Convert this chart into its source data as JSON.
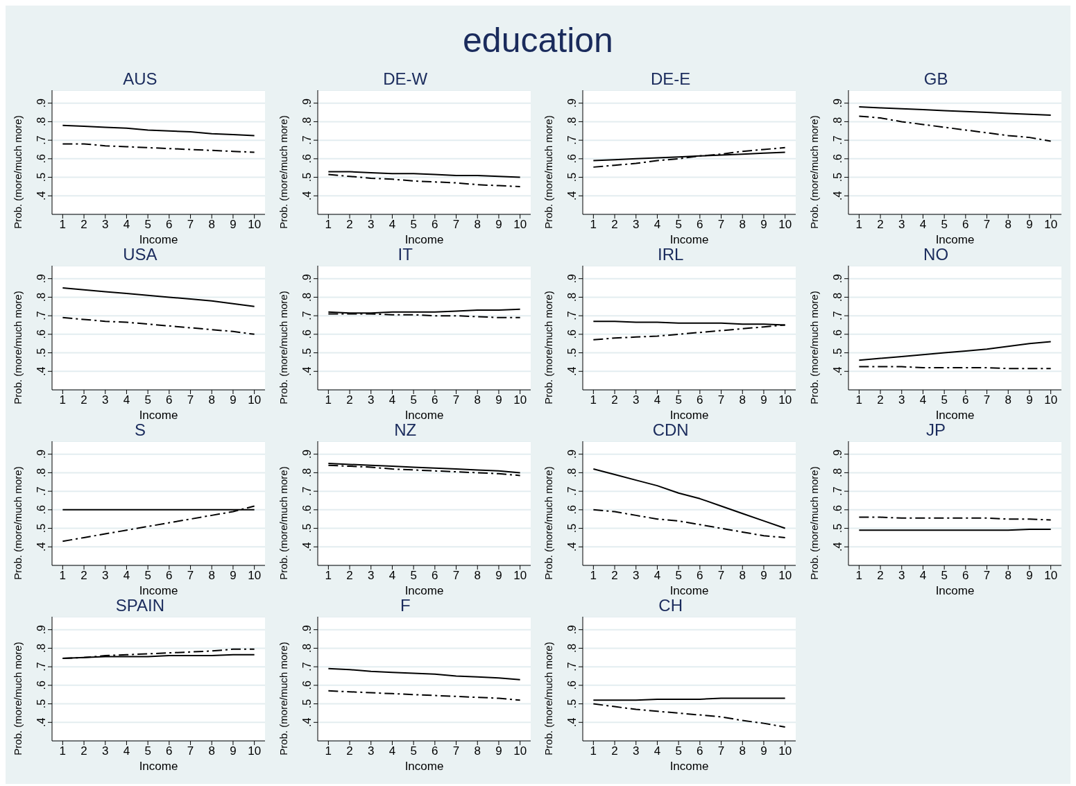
{
  "chart_data": [
    {
      "type": "other",
      "title": "education"
    },
    {
      "type": "line",
      "title": "AUS",
      "xlabel": "Income",
      "ylabel": "Prob. (more/much more)",
      "x": [
        1,
        2,
        3,
        4,
        5,
        6,
        7,
        8,
        9,
        10
      ],
      "xlim": [
        0.5,
        10.5
      ],
      "xticks": [
        1,
        2,
        3,
        4,
        5,
        6,
        7,
        8,
        9,
        10
      ],
      "ylim": [
        0.3,
        0.97
      ],
      "yticks": [
        {
          "value": 0.4,
          "label": ".4"
        },
        {
          "value": 0.5,
          "label": ".5"
        },
        {
          "value": 0.6,
          "label": ".6"
        },
        {
          "value": 0.7,
          "label": ".7"
        },
        {
          "value": 0.8,
          "label": ".8"
        },
        {
          "value": 0.9,
          "label": ".9"
        }
      ],
      "grid": "y",
      "series": [
        {
          "color": "#000000",
          "line_style": "solid",
          "values": [
            0.78,
            0.775,
            0.77,
            0.765,
            0.755,
            0.75,
            0.745,
            0.735,
            0.73,
            0.725
          ]
        },
        {
          "color": "#000000",
          "line_style": "dashed",
          "values": [
            0.68,
            0.68,
            0.67,
            0.665,
            0.66,
            0.655,
            0.65,
            0.645,
            0.64,
            0.635
          ]
        }
      ]
    },
    {
      "type": "line",
      "title": "DE-W",
      "xlabel": "Income",
      "ylabel": "Prob. (more/much more)",
      "x": [
        1,
        2,
        3,
        4,
        5,
        6,
        7,
        8,
        9,
        10
      ],
      "xlim": [
        0.5,
        10.5
      ],
      "xticks": [
        1,
        2,
        3,
        4,
        5,
        6,
        7,
        8,
        9,
        10
      ],
      "ylim": [
        0.3,
        0.97
      ],
      "yticks": [
        {
          "value": 0.4,
          "label": ".4"
        },
        {
          "value": 0.5,
          "label": ".5"
        },
        {
          "value": 0.6,
          "label": ".6"
        },
        {
          "value": 0.7,
          "label": ".7"
        },
        {
          "value": 0.8,
          "label": ".8"
        },
        {
          "value": 0.9,
          "label": ".9"
        }
      ],
      "grid": "y",
      "series": [
        {
          "color": "#000000",
          "line_style": "solid",
          "values": [
            0.53,
            0.53,
            0.525,
            0.52,
            0.52,
            0.515,
            0.51,
            0.51,
            0.505,
            0.5
          ]
        },
        {
          "color": "#000000",
          "line_style": "dashed",
          "values": [
            0.515,
            0.505,
            0.495,
            0.49,
            0.48,
            0.475,
            0.47,
            0.46,
            0.455,
            0.45
          ]
        }
      ]
    },
    {
      "type": "line",
      "title": "DE-E",
      "xlabel": "Income",
      "ylabel": "Prob. (more/much more)",
      "x": [
        1,
        2,
        3,
        4,
        5,
        6,
        7,
        8,
        9,
        10
      ],
      "xlim": [
        0.5,
        10.5
      ],
      "xticks": [
        1,
        2,
        3,
        4,
        5,
        6,
        7,
        8,
        9,
        10
      ],
      "ylim": [
        0.3,
        0.97
      ],
      "yticks": [
        {
          "value": 0.4,
          "label": ".4"
        },
        {
          "value": 0.5,
          "label": ".5"
        },
        {
          "value": 0.6,
          "label": ".6"
        },
        {
          "value": 0.7,
          "label": ".7"
        },
        {
          "value": 0.8,
          "label": ".8"
        },
        {
          "value": 0.9,
          "label": ".9"
        }
      ],
      "grid": "y",
      "series": [
        {
          "color": "#000000",
          "line_style": "solid",
          "values": [
            0.59,
            0.595,
            0.6,
            0.605,
            0.61,
            0.615,
            0.62,
            0.625,
            0.63,
            0.635
          ]
        },
        {
          "color": "#000000",
          "line_style": "dashed",
          "values": [
            0.555,
            0.565,
            0.575,
            0.59,
            0.6,
            0.615,
            0.625,
            0.64,
            0.65,
            0.66
          ]
        }
      ]
    },
    {
      "type": "line",
      "title": "GB",
      "xlabel": "Income",
      "ylabel": "Prob. (more/much more)",
      "x": [
        1,
        2,
        3,
        4,
        5,
        6,
        7,
        8,
        9,
        10
      ],
      "xlim": [
        0.5,
        10.5
      ],
      "xticks": [
        1,
        2,
        3,
        4,
        5,
        6,
        7,
        8,
        9,
        10
      ],
      "ylim": [
        0.3,
        0.97
      ],
      "yticks": [
        {
          "value": 0.4,
          "label": ".4"
        },
        {
          "value": 0.5,
          "label": ".5"
        },
        {
          "value": 0.6,
          "label": ".6"
        },
        {
          "value": 0.7,
          "label": ".7"
        },
        {
          "value": 0.8,
          "label": ".8"
        },
        {
          "value": 0.9,
          "label": ".9"
        }
      ],
      "grid": "y",
      "series": [
        {
          "color": "#000000",
          "line_style": "solid",
          "values": [
            0.88,
            0.875,
            0.87,
            0.865,
            0.86,
            0.855,
            0.85,
            0.845,
            0.84,
            0.835
          ]
        },
        {
          "color": "#000000",
          "line_style": "dashed",
          "values": [
            0.83,
            0.82,
            0.8,
            0.785,
            0.77,
            0.755,
            0.74,
            0.725,
            0.715,
            0.695
          ]
        }
      ]
    },
    {
      "type": "line",
      "title": "USA",
      "xlabel": "Income",
      "ylabel": "Prob. (more/much more)",
      "x": [
        1,
        2,
        3,
        4,
        5,
        6,
        7,
        8,
        9,
        10
      ],
      "xlim": [
        0.5,
        10.5
      ],
      "xticks": [
        1,
        2,
        3,
        4,
        5,
        6,
        7,
        8,
        9,
        10
      ],
      "ylim": [
        0.3,
        0.97
      ],
      "yticks": [
        {
          "value": 0.4,
          "label": ".4"
        },
        {
          "value": 0.5,
          "label": ".5"
        },
        {
          "value": 0.6,
          "label": ".6"
        },
        {
          "value": 0.7,
          "label": ".7"
        },
        {
          "value": 0.8,
          "label": ".8"
        },
        {
          "value": 0.9,
          "label": ".9"
        }
      ],
      "grid": "y",
      "series": [
        {
          "color": "#000000",
          "line_style": "solid",
          "values": [
            0.85,
            0.84,
            0.83,
            0.82,
            0.81,
            0.8,
            0.79,
            0.78,
            0.765,
            0.75
          ]
        },
        {
          "color": "#000000",
          "line_style": "dashed",
          "values": [
            0.69,
            0.68,
            0.67,
            0.665,
            0.655,
            0.645,
            0.635,
            0.625,
            0.615,
            0.6
          ]
        }
      ]
    },
    {
      "type": "line",
      "title": "IT",
      "xlabel": "Income",
      "ylabel": "Prob. (more/much more)",
      "x": [
        1,
        2,
        3,
        4,
        5,
        6,
        7,
        8,
        9,
        10
      ],
      "xlim": [
        0.5,
        10.5
      ],
      "xticks": [
        1,
        2,
        3,
        4,
        5,
        6,
        7,
        8,
        9,
        10
      ],
      "ylim": [
        0.3,
        0.97
      ],
      "yticks": [
        {
          "value": 0.4,
          "label": ".4"
        },
        {
          "value": 0.5,
          "label": ".5"
        },
        {
          "value": 0.6,
          "label": ".6"
        },
        {
          "value": 0.7,
          "label": ".7"
        },
        {
          "value": 0.8,
          "label": ".8"
        },
        {
          "value": 0.9,
          "label": ".9"
        }
      ],
      "grid": "y",
      "series": [
        {
          "color": "#000000",
          "line_style": "solid",
          "values": [
            0.72,
            0.715,
            0.715,
            0.72,
            0.72,
            0.72,
            0.725,
            0.73,
            0.73,
            0.735
          ]
        },
        {
          "color": "#000000",
          "line_style": "dashed",
          "values": [
            0.71,
            0.71,
            0.71,
            0.705,
            0.705,
            0.7,
            0.7,
            0.695,
            0.69,
            0.69
          ]
        }
      ]
    },
    {
      "type": "line",
      "title": "IRL",
      "xlabel": "Income",
      "ylabel": "Prob. (more/much more)",
      "x": [
        1,
        2,
        3,
        4,
        5,
        6,
        7,
        8,
        9,
        10
      ],
      "xlim": [
        0.5,
        10.5
      ],
      "xticks": [
        1,
        2,
        3,
        4,
        5,
        6,
        7,
        8,
        9,
        10
      ],
      "ylim": [
        0.3,
        0.97
      ],
      "yticks": [
        {
          "value": 0.4,
          "label": ".4"
        },
        {
          "value": 0.5,
          "label": ".5"
        },
        {
          "value": 0.6,
          "label": ".6"
        },
        {
          "value": 0.7,
          "label": ".7"
        },
        {
          "value": 0.8,
          "label": ".8"
        },
        {
          "value": 0.9,
          "label": ".9"
        }
      ],
      "grid": "y",
      "series": [
        {
          "color": "#000000",
          "line_style": "solid",
          "values": [
            0.67,
            0.67,
            0.665,
            0.665,
            0.66,
            0.66,
            0.66,
            0.655,
            0.655,
            0.65
          ]
        },
        {
          "color": "#000000",
          "line_style": "dashed",
          "values": [
            0.57,
            0.58,
            0.585,
            0.59,
            0.6,
            0.61,
            0.62,
            0.63,
            0.64,
            0.65
          ]
        }
      ]
    },
    {
      "type": "line",
      "title": "NO",
      "xlabel": "Income",
      "ylabel": "Prob. (more/much more)",
      "x": [
        1,
        2,
        3,
        4,
        5,
        6,
        7,
        8,
        9,
        10
      ],
      "xlim": [
        0.5,
        10.5
      ],
      "xticks": [
        1,
        2,
        3,
        4,
        5,
        6,
        7,
        8,
        9,
        10
      ],
      "ylim": [
        0.3,
        0.97
      ],
      "yticks": [
        {
          "value": 0.4,
          "label": ".4"
        },
        {
          "value": 0.5,
          "label": ".5"
        },
        {
          "value": 0.6,
          "label": ".6"
        },
        {
          "value": 0.7,
          "label": ".7"
        },
        {
          "value": 0.8,
          "label": ".8"
        },
        {
          "value": 0.9,
          "label": ".9"
        }
      ],
      "grid": "y",
      "series": [
        {
          "color": "#000000",
          "line_style": "solid",
          "values": [
            0.46,
            0.47,
            0.48,
            0.49,
            0.5,
            0.51,
            0.52,
            0.535,
            0.55,
            0.56
          ]
        },
        {
          "color": "#000000",
          "line_style": "dashed",
          "values": [
            0.425,
            0.425,
            0.425,
            0.42,
            0.42,
            0.42,
            0.42,
            0.415,
            0.415,
            0.415
          ]
        }
      ]
    },
    {
      "type": "line",
      "title": "S",
      "xlabel": "Income",
      "ylabel": "Prob. (more/much more)",
      "x": [
        1,
        2,
        3,
        4,
        5,
        6,
        7,
        8,
        9,
        10
      ],
      "xlim": [
        0.5,
        10.5
      ],
      "xticks": [
        1,
        2,
        3,
        4,
        5,
        6,
        7,
        8,
        9,
        10
      ],
      "ylim": [
        0.3,
        0.97
      ],
      "yticks": [
        {
          "value": 0.4,
          "label": ".4"
        },
        {
          "value": 0.5,
          "label": ".5"
        },
        {
          "value": 0.6,
          "label": ".6"
        },
        {
          "value": 0.7,
          "label": ".7"
        },
        {
          "value": 0.8,
          "label": ".8"
        },
        {
          "value": 0.9,
          "label": ".9"
        }
      ],
      "grid": "y",
      "series": [
        {
          "color": "#000000",
          "line_style": "solid",
          "values": [
            0.6,
            0.6,
            0.6,
            0.6,
            0.6,
            0.6,
            0.6,
            0.6,
            0.6,
            0.6
          ]
        },
        {
          "color": "#000000",
          "line_style": "dashed",
          "values": [
            0.43,
            0.45,
            0.47,
            0.49,
            0.51,
            0.53,
            0.55,
            0.57,
            0.59,
            0.62
          ]
        }
      ]
    },
    {
      "type": "line",
      "title": "NZ",
      "xlabel": "Income",
      "ylabel": "Prob. (more/much more)",
      "x": [
        1,
        2,
        3,
        4,
        5,
        6,
        7,
        8,
        9,
        10
      ],
      "xlim": [
        0.5,
        10.5
      ],
      "xticks": [
        1,
        2,
        3,
        4,
        5,
        6,
        7,
        8,
        9,
        10
      ],
      "ylim": [
        0.3,
        0.97
      ],
      "yticks": [
        {
          "value": 0.4,
          "label": ".4"
        },
        {
          "value": 0.5,
          "label": ".5"
        },
        {
          "value": 0.6,
          "label": ".6"
        },
        {
          "value": 0.7,
          "label": ".7"
        },
        {
          "value": 0.8,
          "label": ".8"
        },
        {
          "value": 0.9,
          "label": ".9"
        }
      ],
      "grid": "y",
      "series": [
        {
          "color": "#000000",
          "line_style": "solid",
          "values": [
            0.85,
            0.845,
            0.84,
            0.835,
            0.83,
            0.825,
            0.82,
            0.815,
            0.81,
            0.8
          ]
        },
        {
          "color": "#000000",
          "line_style": "dashed",
          "values": [
            0.84,
            0.835,
            0.83,
            0.82,
            0.815,
            0.81,
            0.805,
            0.8,
            0.795,
            0.785
          ]
        }
      ]
    },
    {
      "type": "line",
      "title": "CDN",
      "xlabel": "Income",
      "ylabel": "Prob. (more/much more)",
      "x": [
        1,
        2,
        3,
        4,
        5,
        6,
        7,
        8,
        9,
        10
      ],
      "xlim": [
        0.5,
        10.5
      ],
      "xticks": [
        1,
        2,
        3,
        4,
        5,
        6,
        7,
        8,
        9,
        10
      ],
      "ylim": [
        0.3,
        0.97
      ],
      "yticks": [
        {
          "value": 0.4,
          "label": ".4"
        },
        {
          "value": 0.5,
          "label": ".5"
        },
        {
          "value": 0.6,
          "label": ".6"
        },
        {
          "value": 0.7,
          "label": ".7"
        },
        {
          "value": 0.8,
          "label": ".8"
        },
        {
          "value": 0.9,
          "label": ".9"
        }
      ],
      "grid": "y",
      "series": [
        {
          "color": "#000000",
          "line_style": "solid",
          "values": [
            0.82,
            0.79,
            0.76,
            0.73,
            0.69,
            0.66,
            0.62,
            0.58,
            0.54,
            0.5
          ]
        },
        {
          "color": "#000000",
          "line_style": "dashed",
          "values": [
            0.6,
            0.59,
            0.57,
            0.55,
            0.54,
            0.52,
            0.5,
            0.48,
            0.46,
            0.45
          ]
        }
      ]
    },
    {
      "type": "line",
      "title": "JP",
      "xlabel": "Income",
      "ylabel": "Prob. (more/much more)",
      "x": [
        1,
        2,
        3,
        4,
        5,
        6,
        7,
        8,
        9,
        10
      ],
      "xlim": [
        0.5,
        10.5
      ],
      "xticks": [
        1,
        2,
        3,
        4,
        5,
        6,
        7,
        8,
        9,
        10
      ],
      "ylim": [
        0.3,
        0.97
      ],
      "yticks": [
        {
          "value": 0.4,
          "label": ".4"
        },
        {
          "value": 0.5,
          "label": ".5"
        },
        {
          "value": 0.6,
          "label": ".6"
        },
        {
          "value": 0.7,
          "label": ".7"
        },
        {
          "value": 0.8,
          "label": ".8"
        },
        {
          "value": 0.9,
          "label": ".9"
        }
      ],
      "grid": "y",
      "series": [
        {
          "color": "#000000",
          "line_style": "solid",
          "values": [
            0.49,
            0.49,
            0.49,
            0.49,
            0.49,
            0.49,
            0.49,
            0.49,
            0.495,
            0.495
          ]
        },
        {
          "color": "#000000",
          "line_style": "dashed",
          "values": [
            0.56,
            0.56,
            0.555,
            0.555,
            0.555,
            0.555,
            0.555,
            0.55,
            0.55,
            0.545
          ]
        }
      ]
    },
    {
      "type": "line",
      "title": "SPAIN",
      "xlabel": "Income",
      "ylabel": "Prob. (more/much more)",
      "x": [
        1,
        2,
        3,
        4,
        5,
        6,
        7,
        8,
        9,
        10
      ],
      "xlim": [
        0.5,
        10.5
      ],
      "xticks": [
        1,
        2,
        3,
        4,
        5,
        6,
        7,
        8,
        9,
        10
      ],
      "ylim": [
        0.3,
        0.97
      ],
      "yticks": [
        {
          "value": 0.4,
          "label": ".4"
        },
        {
          "value": 0.5,
          "label": ".5"
        },
        {
          "value": 0.6,
          "label": ".6"
        },
        {
          "value": 0.7,
          "label": ".7"
        },
        {
          "value": 0.8,
          "label": ".8"
        },
        {
          "value": 0.9,
          "label": ".9"
        }
      ],
      "grid": "y",
      "series": [
        {
          "color": "#000000",
          "line_style": "solid",
          "values": [
            0.745,
            0.75,
            0.755,
            0.755,
            0.755,
            0.76,
            0.76,
            0.76,
            0.765,
            0.765
          ]
        },
        {
          "color": "#000000",
          "line_style": "dashed",
          "values": [
            0.745,
            0.75,
            0.76,
            0.765,
            0.77,
            0.775,
            0.78,
            0.785,
            0.795,
            0.795
          ]
        }
      ]
    },
    {
      "type": "line",
      "title": "F",
      "xlabel": "Income",
      "ylabel": "Prob. (more/much more)",
      "x": [
        1,
        2,
        3,
        4,
        5,
        6,
        7,
        8,
        9,
        10
      ],
      "xlim": [
        0.5,
        10.5
      ],
      "xticks": [
        1,
        2,
        3,
        4,
        5,
        6,
        7,
        8,
        9,
        10
      ],
      "ylim": [
        0.3,
        0.97
      ],
      "yticks": [
        {
          "value": 0.4,
          "label": ".4"
        },
        {
          "value": 0.5,
          "label": ".5"
        },
        {
          "value": 0.6,
          "label": ".6"
        },
        {
          "value": 0.7,
          "label": ".7"
        },
        {
          "value": 0.8,
          "label": ".8"
        },
        {
          "value": 0.9,
          "label": ".9"
        }
      ],
      "grid": "y",
      "series": [
        {
          "color": "#000000",
          "line_style": "solid",
          "values": [
            0.69,
            0.685,
            0.675,
            0.67,
            0.665,
            0.66,
            0.65,
            0.645,
            0.64,
            0.63
          ]
        },
        {
          "color": "#000000",
          "line_style": "dashed",
          "values": [
            0.57,
            0.565,
            0.56,
            0.555,
            0.55,
            0.545,
            0.54,
            0.535,
            0.53,
            0.52
          ]
        }
      ]
    },
    {
      "type": "line",
      "title": "CH",
      "xlabel": "Income",
      "ylabel": "Prob. (more/much more)",
      "x": [
        1,
        2,
        3,
        4,
        5,
        6,
        7,
        8,
        9,
        10
      ],
      "xlim": [
        0.5,
        10.5
      ],
      "xticks": [
        1,
        2,
        3,
        4,
        5,
        6,
        7,
        8,
        9,
        10
      ],
      "ylim": [
        0.3,
        0.97
      ],
      "yticks": [
        {
          "value": 0.4,
          "label": ".4"
        },
        {
          "value": 0.5,
          "label": ".5"
        },
        {
          "value": 0.6,
          "label": ".6"
        },
        {
          "value": 0.7,
          "label": ".7"
        },
        {
          "value": 0.8,
          "label": ".8"
        },
        {
          "value": 0.9,
          "label": ".9"
        }
      ],
      "grid": "y",
      "series": [
        {
          "color": "#000000",
          "line_style": "solid",
          "values": [
            0.52,
            0.52,
            0.52,
            0.525,
            0.525,
            0.525,
            0.53,
            0.53,
            0.53,
            0.53
          ]
        },
        {
          "color": "#000000",
          "line_style": "dashed",
          "values": [
            0.5,
            0.485,
            0.47,
            0.46,
            0.45,
            0.44,
            0.43,
            0.41,
            0.395,
            0.375
          ]
        }
      ]
    }
  ]
}
